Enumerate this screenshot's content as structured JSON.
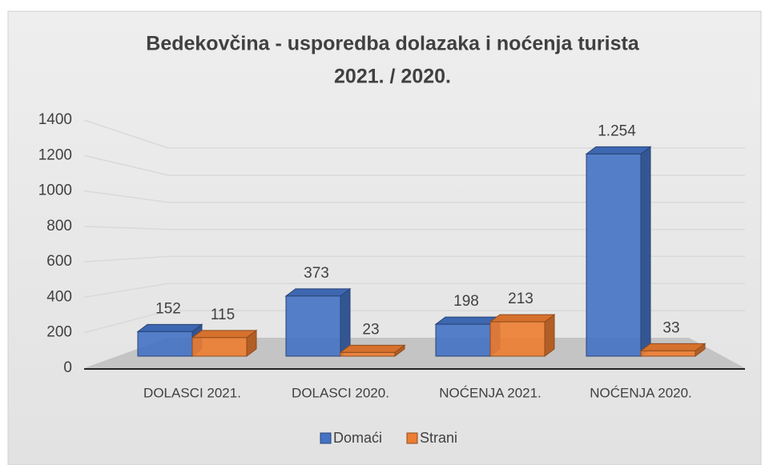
{
  "chart_data": {
    "type": "bar3d",
    "title": "Bedekovčina - usporedba dolazaka i noćenja turista",
    "subtitle": "2021. / 2020.",
    "categories": [
      "DOLASCI 2021.",
      "DOLASCI 2020.",
      "NOĆENJA 2021.",
      "NOĆENJA 2020."
    ],
    "series": [
      {
        "name": "Domaći",
        "color": "#4472c4",
        "values": [
          152,
          373,
          198,
          1254
        ],
        "value_labels": [
          "152",
          "373",
          "198",
          "1.254"
        ]
      },
      {
        "name": "Strani",
        "color": "#ed7d31",
        "values": [
          115,
          23,
          213,
          33
        ],
        "value_labels": [
          "115",
          "23",
          "213",
          "33"
        ]
      }
    ],
    "ylim": [
      0,
      1400
    ],
    "yticks": [
      0,
      200,
      400,
      600,
      800,
      1000,
      1200,
      1400
    ],
    "grid": true,
    "legend": "bottom"
  }
}
